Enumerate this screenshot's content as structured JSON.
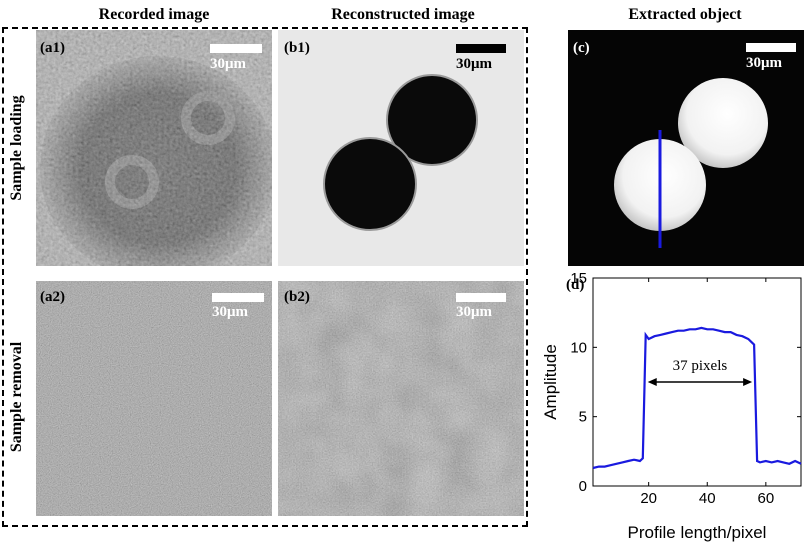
{
  "columns": {
    "recorded": "Recorded image",
    "reconstructed": "Reconstructed image",
    "extracted": "Extracted object"
  },
  "rows": {
    "loading": "Sample loading",
    "removal": "Sample removal"
  },
  "panels": {
    "a1": "(a1)",
    "b1": "(b1)",
    "a2": "(a2)",
    "b2": "(b2)",
    "c": "(c)",
    "d": "(d)"
  },
  "scale_label": "30μm",
  "colors": {
    "profile_line": "#1a1adf",
    "scale_white": "#ffffff",
    "scale_black": "#000000"
  },
  "chart_data": {
    "type": "line",
    "xlabel": "Profile length/pixel",
    "ylabel": "Amplitude",
    "xlim": [
      1,
      72
    ],
    "ylim": [
      0,
      15
    ],
    "xticks": [
      20,
      40,
      60
    ],
    "yticks": [
      0,
      5,
      10,
      15
    ],
    "grid": false,
    "annotation": "37 pixels",
    "annotation_span": [
      19,
      56
    ],
    "annotation_y": 7.5,
    "series": [
      {
        "x": [
          1,
          3,
          5,
          7,
          9,
          11,
          13,
          15,
          17,
          18,
          19,
          20,
          22,
          24,
          26,
          28,
          30,
          32,
          34,
          36,
          38,
          40,
          42,
          44,
          46,
          48,
          50,
          52,
          54,
          55,
          56,
          57,
          58,
          60,
          62,
          64,
          66,
          68,
          70,
          72
        ],
        "y": [
          1.3,
          1.4,
          1.4,
          1.5,
          1.6,
          1.7,
          1.8,
          1.9,
          1.8,
          2.0,
          10.9,
          10.6,
          10.8,
          10.9,
          11.0,
          11.1,
          11.2,
          11.2,
          11.3,
          11.3,
          11.4,
          11.3,
          11.3,
          11.2,
          11.1,
          11.1,
          10.9,
          10.8,
          10.6,
          10.4,
          10.2,
          1.8,
          1.7,
          1.8,
          1.7,
          1.8,
          1.7,
          1.6,
          1.8,
          1.6
        ]
      }
    ]
  }
}
